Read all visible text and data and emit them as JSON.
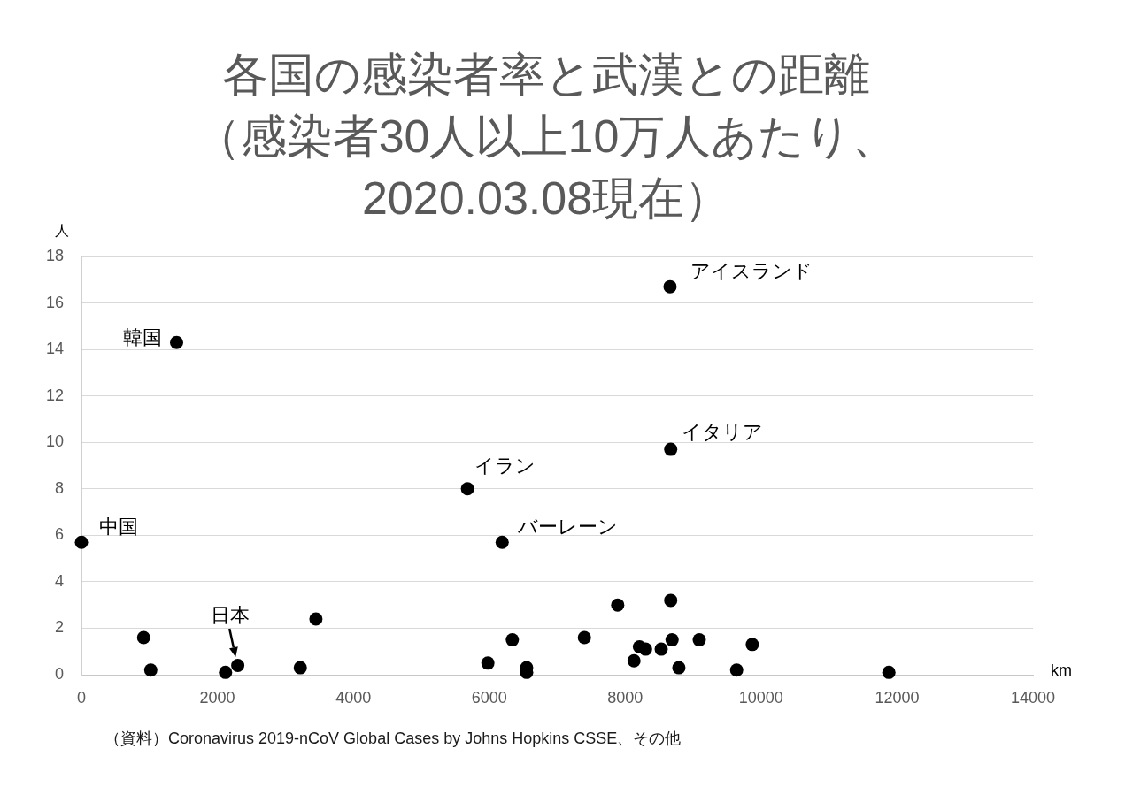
{
  "chart_data": {
    "type": "scatter",
    "title": "各国の感染者率と武漢との距離（感染者30人以上10万人あたり、2020.03.08現在）",
    "xlabel": "km",
    "ylabel": "人",
    "x": [
      0,
      915,
      1020,
      1400,
      2120,
      2300,
      3220,
      3450,
      5680,
      5980,
      6190,
      6340,
      6550,
      6550,
      7400,
      7890,
      8130,
      8210,
      8300,
      8530,
      8660,
      8670,
      8670,
      8690,
      8790,
      9090,
      9640,
      9870,
      11880
    ],
    "values": [
      5.7,
      1.6,
      0.2,
      14.3,
      0.1,
      0.4,
      0.3,
      2.4,
      8.0,
      0.5,
      5.7,
      1.5,
      0.3,
      0.1,
      1.6,
      3.0,
      0.6,
      1.2,
      1.1,
      1.1,
      16.7,
      9.7,
      3.2,
      1.5,
      0.3,
      1.5,
      0.2,
      1.3,
      0.1
    ],
    "color": "#000000",
    "marker": "circle",
    "xlim": [
      0,
      14000
    ],
    "xticks": [
      0,
      2000,
      4000,
      6000,
      8000,
      10000,
      12000,
      14000
    ],
    "ylim": [
      0,
      18
    ],
    "yticks": [
      0,
      2,
      4,
      6,
      8,
      10,
      12,
      14,
      16,
      18
    ],
    "grid": "y",
    "annotations": [
      {
        "text": "中国",
        "x": 0,
        "y": 5.7
      },
      {
        "text": "韓国",
        "x": 1400,
        "y": 14.3
      },
      {
        "text": "日本",
        "x": 2300,
        "y": 0.4
      },
      {
        "text": "イラン",
        "x": 5680,
        "y": 8.0
      },
      {
        "text": "バーレーン",
        "x": 6190,
        "y": 5.7
      },
      {
        "text": "イタリア",
        "x": 8670,
        "y": 9.7
      },
      {
        "text": "アイスランド",
        "x": 8660,
        "y": 16.7
      },
      "（資料）Coronavirus 2019-nCoV Global Cases by Johns Hopkins CSSE、その他"
    ]
  }
}
